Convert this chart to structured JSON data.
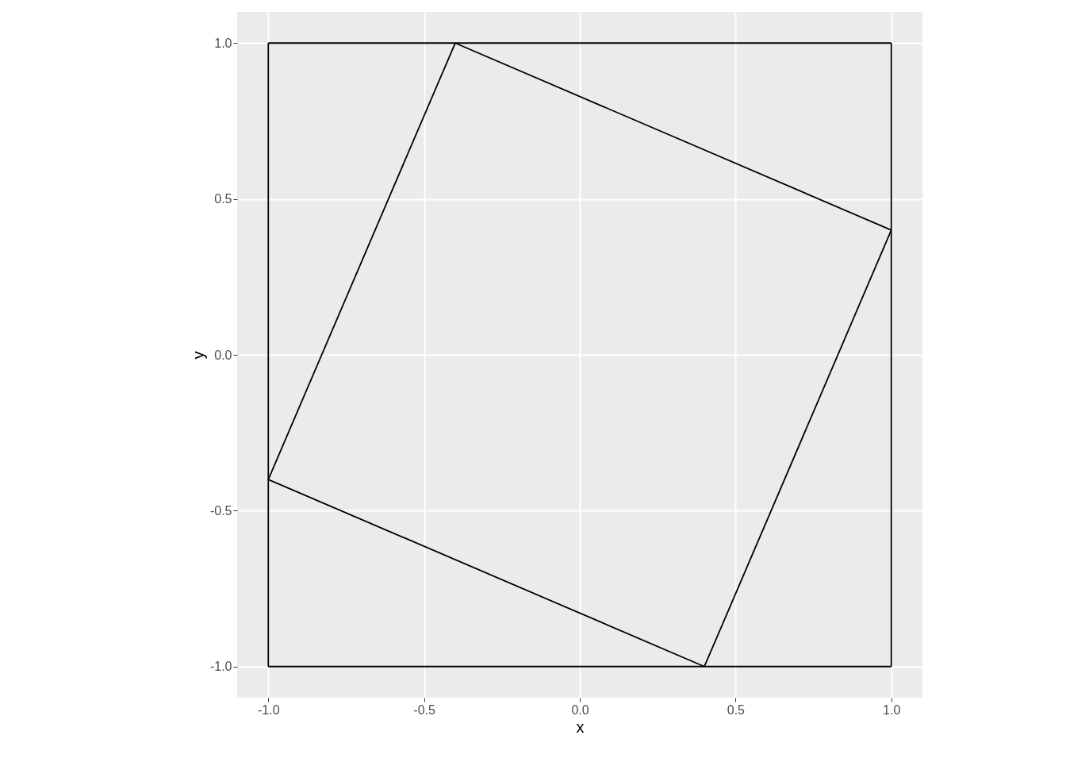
{
  "chart_data": {
    "type": "line",
    "xlabel": "x",
    "ylabel": "y",
    "series": [
      {
        "color": "#000000",
        "x": [
          -1,
          -1
        ],
        "values": [
          -1,
          1
        ]
      },
      {
        "color": "#000000",
        "x": [
          -1,
          1
        ],
        "values": [
          1,
          1
        ]
      },
      {
        "color": "#000000",
        "x": [
          1,
          1
        ],
        "values": [
          1,
          -1
        ]
      },
      {
        "color": "#000000",
        "x": [
          -1,
          1
        ],
        "values": [
          -1,
          -1
        ]
      },
      {
        "color": "#000000",
        "x": [
          -0.4,
          1
        ],
        "values": [
          1,
          0.4
        ]
      },
      {
        "color": "#000000",
        "x": [
          0.4,
          1
        ],
        "values": [
          -1,
          0.4
        ]
      },
      {
        "color": "#000000",
        "x": [
          -1,
          0.4
        ],
        "values": [
          -0.4,
          -1
        ]
      },
      {
        "color": "#000000",
        "x": [
          -1,
          -0.4
        ],
        "values": [
          -0.4,
          1
        ]
      }
    ],
    "xlim": [
      -1.1,
      1.1
    ],
    "ylim": [
      -1.1,
      1.1
    ],
    "xticks": [
      {
        "value": -1,
        "label": "-1.0"
      },
      {
        "value": -0.5,
        "label": "-0.5"
      },
      {
        "value": 0,
        "label": "0.0"
      },
      {
        "value": 0.5,
        "label": "0.5"
      },
      {
        "value": 1,
        "label": "1.0"
      }
    ],
    "yticks": [
      {
        "value": -1,
        "label": "-1.0"
      },
      {
        "value": -0.5,
        "label": "-0.5"
      },
      {
        "value": 0,
        "label": "0.0"
      },
      {
        "value": 0.5,
        "label": "0.5"
      },
      {
        "value": 1,
        "label": "1.0"
      }
    ],
    "grid": true,
    "marker": "none",
    "line_style": "solid"
  }
}
